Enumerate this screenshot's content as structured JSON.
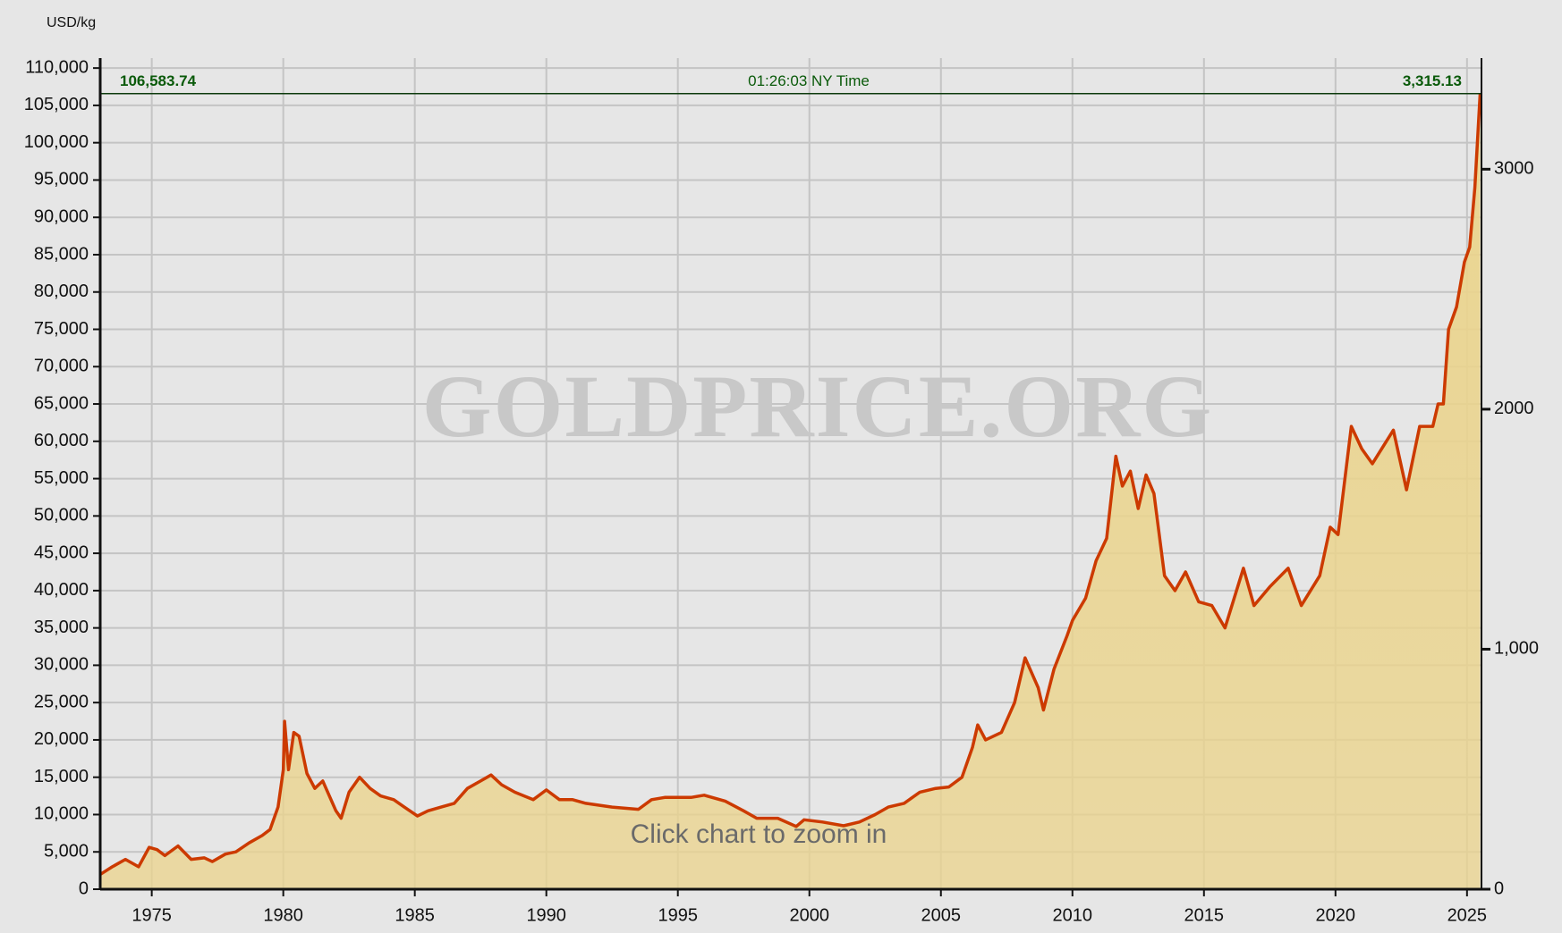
{
  "chart_data": {
    "type": "area",
    "y_label": "USD/kg",
    "watermark": "GOLDPRICE.ORG",
    "hint": "Click chart to zoom in",
    "time_label": "01:26:03 NY Time",
    "current_price": {
      "values": [
        106583.74,
        3315.13
      ],
      "value_labels": [
        "106,583.74",
        "3,315.13"
      ]
    },
    "color": "#cc3a00",
    "fill_color": "#ebd48c",
    "grid": true,
    "x": [
      1973.05,
      1973.5,
      1974.0,
      1974.5,
      1974.9,
      1975.2,
      1975.5,
      1976.0,
      1976.5,
      1977.0,
      1977.3,
      1977.8,
      1978.2,
      1978.7,
      1979.2,
      1979.5,
      1979.8,
      1980.0,
      1980.05,
      1980.2,
      1980.4,
      1980.6,
      1980.9,
      1981.2,
      1981.5,
      1982.0,
      1982.2,
      1982.5,
      1982.9,
      1983.3,
      1983.7,
      1984.2,
      1984.6,
      1985.1,
      1985.5,
      1986.0,
      1986.5,
      1987.0,
      1987.5,
      1987.9,
      1988.3,
      1988.8,
      1989.5,
      1990.0,
      1990.5,
      1991.0,
      1991.5,
      1992.5,
      1993.5,
      1994.0,
      1994.5,
      1995.5,
      1996.0,
      1996.8,
      1997.5,
      1998.0,
      1998.8,
      1999.5,
      1999.8,
      2000.5,
      2001.3,
      2001.9,
      2002.5,
      2003.0,
      2003.6,
      2004.2,
      2004.8,
      2005.3,
      2005.8,
      2006.2,
      2006.4,
      2006.7,
      2007.3,
      2007.8,
      2008.2,
      2008.7,
      2008.9,
      2009.3,
      2009.8,
      2010.0,
      2010.5,
      2010.9,
      2011.3,
      2011.65,
      2011.9,
      2012.2,
      2012.5,
      2012.8,
      2013.1,
      2013.5,
      2013.9,
      2014.3,
      2014.8,
      2015.3,
      2015.8,
      2016.5,
      2016.9,
      2017.5,
      2018.2,
      2018.7,
      2019.4,
      2019.8,
      2020.1,
      2020.6,
      2021.0,
      2021.4,
      2022.2,
      2022.7,
      2023.2,
      2023.7,
      2023.9,
      2024.1,
      2024.3,
      2024.6,
      2024.9,
      2025.1,
      2025.3,
      2025.5
    ],
    "values": [
      2000,
      3000,
      4000,
      3000,
      5600,
      5300,
      4500,
      5800,
      4000,
      4200,
      3700,
      4700,
      5000,
      6200,
      7200,
      8000,
      11000,
      16000,
      22500,
      16000,
      21000,
      20500,
      15500,
      13500,
      14500,
      10500,
      9500,
      13000,
      15000,
      13500,
      12500,
      12000,
      11000,
      9800,
      10500,
      11000,
      11500,
      13500,
      14500,
      15300,
      14000,
      13000,
      12000,
      13300,
      12000,
      12000,
      11500,
      11000,
      10700,
      12000,
      12300,
      12300,
      12600,
      11800,
      10500,
      9500,
      9500,
      8400,
      9300,
      9000,
      8500,
      9000,
      10000,
      11000,
      11500,
      13000,
      13500,
      13700,
      15000,
      19000,
      22000,
      20000,
      21000,
      25000,
      31000,
      27000,
      24000,
      29500,
      34000,
      36000,
      39000,
      44000,
      47000,
      58000,
      54000,
      56000,
      51000,
      55500,
      53000,
      42000,
      40000,
      42500,
      38500,
      38000,
      35000,
      43000,
      38000,
      40500,
      43000,
      38000,
      42000,
      48500,
      47500,
      62000,
      59000,
      57000,
      61500,
      53500,
      62000,
      62000,
      65000,
      65000,
      75000,
      78000,
      84000,
      86000,
      94000,
      106584
    ],
    "xlim": [
      1973.04,
      2025.55
    ],
    "xticks": [
      1975,
      1980,
      1985,
      1990,
      1995,
      2000,
      2005,
      2010,
      2015,
      2020,
      2025
    ],
    "ylim": [
      0,
      111335
    ],
    "yticks": [
      0,
      {
        "value": 5000,
        "label": "5,000"
      },
      {
        "value": 10000,
        "label": "10,000"
      },
      {
        "value": 15000,
        "label": "15,000"
      },
      {
        "value": 20000,
        "label": "20,000"
      },
      {
        "value": 25000,
        "label": "25,000"
      },
      {
        "value": 30000,
        "label": "30,000"
      },
      {
        "value": 35000,
        "label": "35,000"
      },
      {
        "value": 40000,
        "label": "40,000"
      },
      {
        "value": 45000,
        "label": "45,000"
      },
      {
        "value": 50000,
        "label": "50,000"
      },
      {
        "value": 55000,
        "label": "55,000"
      },
      {
        "value": 60000,
        "label": "60,000"
      },
      {
        "value": 65000,
        "label": "65,000"
      },
      {
        "value": 70000,
        "label": "70,000"
      },
      {
        "value": 75000,
        "label": "75,000"
      },
      {
        "value": 80000,
        "label": "80,000"
      },
      {
        "value": 85000,
        "label": "85,000"
      },
      {
        "value": 90000,
        "label": "90,000"
      },
      {
        "value": 95000,
        "label": "95,000"
      },
      {
        "value": 100000,
        "label": "100,000"
      },
      {
        "value": 105000,
        "label": "105,000"
      },
      {
        "value": 110000,
        "label": "110,000"
      }
    ],
    "y2lim": [
      0,
      3463
    ],
    "y2ticks": [
      0,
      {
        "value": 1000,
        "label": "1,000"
      },
      2000,
      3000
    ]
  }
}
